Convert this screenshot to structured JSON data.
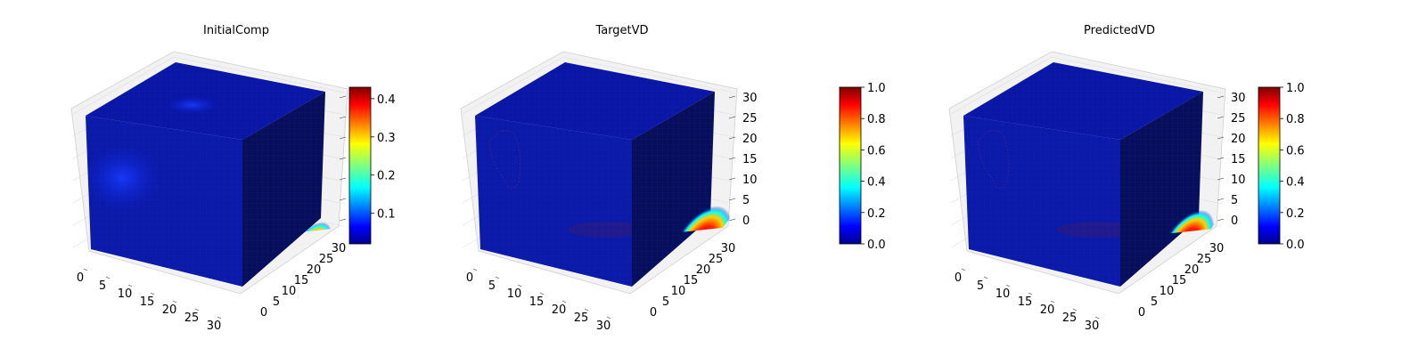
{
  "chart_data": [
    {
      "type": "heatmap",
      "title": "InitialComp",
      "colormap": "jet",
      "colorbar": {
        "min": 0.02,
        "max": 0.43,
        "ticks": [
          "0.1",
          "0.2",
          "0.3",
          "0.4"
        ]
      },
      "axes": {
        "x_ticks": [
          "0",
          "5",
          "10",
          "15",
          "20",
          "25",
          "30"
        ],
        "y_ticks": [
          "0",
          "5",
          "10",
          "15",
          "20",
          "25",
          "30"
        ],
        "z_ticks": [
          "",
          "",
          "",
          "",
          "",
          "",
          ""
        ]
      },
      "hotspots": [
        {
          "face": "front",
          "u": 0.12,
          "v": 0.6,
          "radius": 0.2,
          "value": 0.1
        },
        {
          "face": "top",
          "u": 0.35,
          "v": 0.8,
          "radius": 0.15,
          "value": 0.08
        },
        {
          "face": "right",
          "u": 0.85,
          "v": 0.2,
          "radius": 0.12,
          "value": 0.4
        }
      ]
    },
    {
      "type": "heatmap",
      "title": "TargetVD",
      "colormap": "jet",
      "colorbar": {
        "min": 0.0,
        "max": 1.0,
        "ticks": [
          "0.0",
          "0.2",
          "0.4",
          "0.6",
          "0.8",
          "1.0"
        ]
      },
      "axes": {
        "x_ticks": [
          "0",
          "5",
          "10",
          "15",
          "20",
          "25",
          "30"
        ],
        "y_ticks": [
          "0",
          "5",
          "10",
          "15",
          "20",
          "25",
          "30"
        ],
        "z_ticks": [
          "0",
          "5",
          "10",
          "15",
          "20",
          "25",
          "30"
        ]
      },
      "hotspots": [
        {
          "face": "right",
          "u": 0.85,
          "v": 0.25,
          "radius": 0.18,
          "value": 1.0
        }
      ]
    },
    {
      "type": "heatmap",
      "title": "PredictedVD",
      "colormap": "jet",
      "colorbar": {
        "min": 0.0,
        "max": 1.0,
        "ticks": [
          "0.0",
          "0.2",
          "0.4",
          "0.6",
          "0.8",
          "1.0"
        ]
      },
      "axes": {
        "x_ticks": [
          "0",
          "5",
          "10",
          "15",
          "20",
          "25",
          "30"
        ],
        "y_ticks": [
          "0",
          "5",
          "10",
          "15",
          "20",
          "25",
          "30"
        ],
        "z_ticks": [
          "0",
          "5",
          "10",
          "15",
          "20",
          "25",
          "30"
        ]
      },
      "hotspots": [
        {
          "face": "right",
          "u": 0.82,
          "v": 0.25,
          "radius": 0.16,
          "value": 1.0
        }
      ]
    }
  ]
}
